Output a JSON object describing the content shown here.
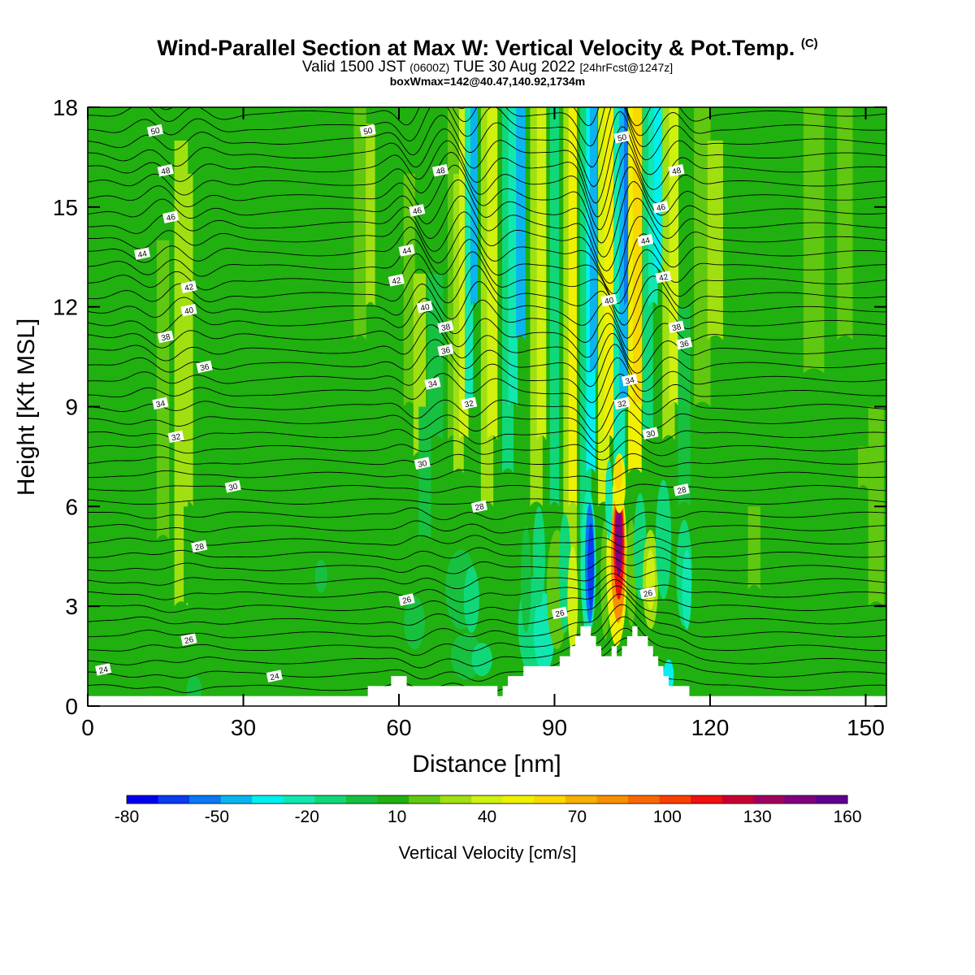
{
  "header": {
    "title": "Wind-Parallel Section at Max W: Vertical Velocity & Pot.Temp.",
    "copyright": "(C)",
    "valid_prefix": "Valid 1500 JST",
    "valid_utc": "(0600Z)",
    "valid_date": "TUE 30 Aug 2022",
    "forecast": "[24hrFcst@1247z]",
    "box_info": "boxWmax=142@40.47,140.92,1734m"
  },
  "chart_data": {
    "type": "heatmap",
    "xlabel": "Distance [nm]",
    "ylabel": "Height [Kft MSL]",
    "xlim": [
      0,
      154
    ],
    "ylim": [
      0,
      18
    ],
    "x_ticks": [
      0,
      30,
      60,
      90,
      120,
      150
    ],
    "y_ticks": [
      0,
      3,
      6,
      9,
      12,
      15,
      18
    ],
    "colorbar": {
      "label": "Vertical Velocity [cm/s]",
      "min": -80,
      "max": 160,
      "step": 10,
      "tick_labels": [
        -80,
        -50,
        -20,
        10,
        40,
        70,
        100,
        130,
        160
      ],
      "colors": [
        "#0000f0",
        "#0a3cf0",
        "#0a78f0",
        "#0ab4f0",
        "#00f0f0",
        "#10e8b0",
        "#10d878",
        "#18c040",
        "#20b010",
        "#60c810",
        "#a0e010",
        "#d0f010",
        "#f0f000",
        "#f8d800",
        "#f8b000",
        "#f89000",
        "#f86800",
        "#f84000",
        "#f01010",
        "#c80030",
        "#a00060",
        "#800080",
        "#600090"
      ]
    },
    "background_w_cms": 5,
    "theta_contour_labels": [
      {
        "value": 24,
        "x": 3,
        "y": 1.1
      },
      {
        "value": 24,
        "x": 36,
        "y": 0.9
      },
      {
        "value": 26,
        "x": 19.5,
        "y": 2.0
      },
      {
        "value": 26,
        "x": 61.5,
        "y": 3.2
      },
      {
        "value": 26,
        "x": 91,
        "y": 2.8
      },
      {
        "value": 26,
        "x": 108,
        "y": 3.4
      },
      {
        "value": 28,
        "x": 21.5,
        "y": 4.8
      },
      {
        "value": 28,
        "x": 75.5,
        "y": 6.0
      },
      {
        "value": 28,
        "x": 114.5,
        "y": 6.5
      },
      {
        "value": 30,
        "x": 28,
        "y": 6.6
      },
      {
        "value": 30,
        "x": 64.5,
        "y": 7.3
      },
      {
        "value": 30,
        "x": 108.5,
        "y": 8.2
      },
      {
        "value": 32,
        "x": 17,
        "y": 8.1
      },
      {
        "value": 32,
        "x": 73.5,
        "y": 9.1
      },
      {
        "value": 32,
        "x": 103,
        "y": 9.1
      },
      {
        "value": 34,
        "x": 14,
        "y": 9.1
      },
      {
        "value": 34,
        "x": 66.5,
        "y": 9.7
      },
      {
        "value": 34,
        "x": 104.5,
        "y": 9.8
      },
      {
        "value": 36,
        "x": 22.5,
        "y": 10.2
      },
      {
        "value": 36,
        "x": 69,
        "y": 10.7
      },
      {
        "value": 36,
        "x": 115,
        "y": 10.9
      },
      {
        "value": 38,
        "x": 15,
        "y": 11.1
      },
      {
        "value": 38,
        "x": 69,
        "y": 11.4
      },
      {
        "value": 38,
        "x": 113.5,
        "y": 11.4
      },
      {
        "value": 40,
        "x": 19.5,
        "y": 11.9
      },
      {
        "value": 40,
        "x": 65,
        "y": 12.0
      },
      {
        "value": 40,
        "x": 100.5,
        "y": 12.2
      },
      {
        "value": 42,
        "x": 19.5,
        "y": 12.6
      },
      {
        "value": 42,
        "x": 59.5,
        "y": 12.8
      },
      {
        "value": 42,
        "x": 111,
        "y": 12.9
      },
      {
        "value": 44,
        "x": 10.5,
        "y": 13.6
      },
      {
        "value": 44,
        "x": 61.5,
        "y": 13.7
      },
      {
        "value": 44,
        "x": 107.5,
        "y": 14.0
      },
      {
        "value": 46,
        "x": 16,
        "y": 14.7
      },
      {
        "value": 46,
        "x": 63.5,
        "y": 14.9
      },
      {
        "value": 46,
        "x": 110.5,
        "y": 15.0
      },
      {
        "value": 48,
        "x": 15,
        "y": 16.1
      },
      {
        "value": 48,
        "x": 68,
        "y": 16.1
      },
      {
        "value": 48,
        "x": 113.5,
        "y": 16.1
      },
      {
        "value": 50,
        "x": 13,
        "y": 17.3
      },
      {
        "value": 50,
        "x": 54,
        "y": 17.3
      },
      {
        "value": 50,
        "x": 103,
        "y": 17.1
      }
    ],
    "terrain_profile_kft": [
      [
        0,
        0.3
      ],
      [
        54,
        0.3
      ],
      [
        54,
        0.6
      ],
      [
        58.5,
        0.6
      ],
      [
        58.5,
        0.9
      ],
      [
        61.5,
        0.9
      ],
      [
        61.5,
        0.6
      ],
      [
        79,
        0.6
      ],
      [
        79,
        0.3
      ],
      [
        80,
        0.3
      ],
      [
        80,
        0.6
      ],
      [
        81,
        0.6
      ],
      [
        81,
        0.9
      ],
      [
        84,
        0.9
      ],
      [
        84,
        1.2
      ],
      [
        91,
        1.2
      ],
      [
        91,
        1.5
      ],
      [
        93,
        1.5
      ],
      [
        93,
        1.8
      ],
      [
        94,
        1.8
      ],
      [
        94,
        2.1
      ],
      [
        95,
        2.1
      ],
      [
        95,
        2.4
      ],
      [
        97,
        2.4
      ],
      [
        97,
        2.1
      ],
      [
        98,
        2.1
      ],
      [
        98,
        1.8
      ],
      [
        99,
        1.8
      ],
      [
        99,
        1.5
      ],
      [
        101,
        1.5
      ],
      [
        101,
        1.8
      ],
      [
        102,
        1.8
      ],
      [
        102,
        1.5
      ],
      [
        103,
        1.5
      ],
      [
        103,
        1.8
      ],
      [
        104,
        1.8
      ],
      [
        104,
        2.1
      ],
      [
        105,
        2.1
      ],
      [
        105,
        2.4
      ],
      [
        106,
        2.4
      ],
      [
        106,
        2.1
      ],
      [
        108,
        2.1
      ],
      [
        108,
        1.8
      ],
      [
        109,
        1.8
      ],
      [
        109,
        1.5
      ],
      [
        110,
        1.5
      ],
      [
        110,
        1.2
      ],
      [
        111,
        1.2
      ],
      [
        111,
        0.9
      ],
      [
        112,
        0.9
      ],
      [
        112,
        0.6
      ],
      [
        116,
        0.6
      ],
      [
        116,
        0.3
      ],
      [
        154,
        0.3
      ]
    ]
  }
}
